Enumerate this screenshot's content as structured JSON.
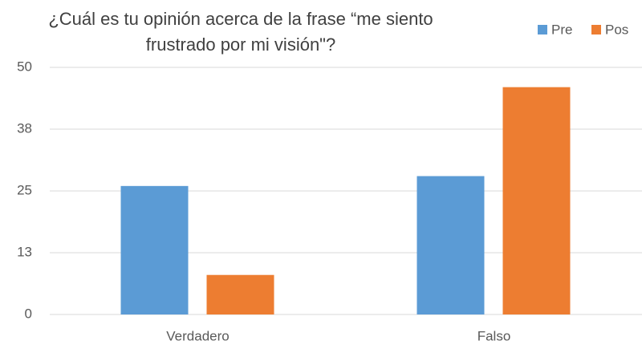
{
  "chart_data": {
    "type": "bar",
    "title": "¿Cuál es tu opinión acerca de la frase “me siento frustrado por mi visión\"?",
    "categories": [
      "Verdadero",
      "Falso"
    ],
    "series": [
      {
        "name": "Pre",
        "color": "#5b9bd5",
        "values": [
          26,
          28
        ]
      },
      {
        "name": "Pos",
        "color": "#ed7d31",
        "values": [
          8,
          46
        ]
      }
    ],
    "ylim": [
      0,
      50
    ],
    "yticks": [
      0,
      {
        "value": 12.5,
        "label": "13"
      },
      25,
      {
        "value": 37.5,
        "label": "38"
      },
      50
    ],
    "grid": true,
    "legend": "top-right"
  }
}
